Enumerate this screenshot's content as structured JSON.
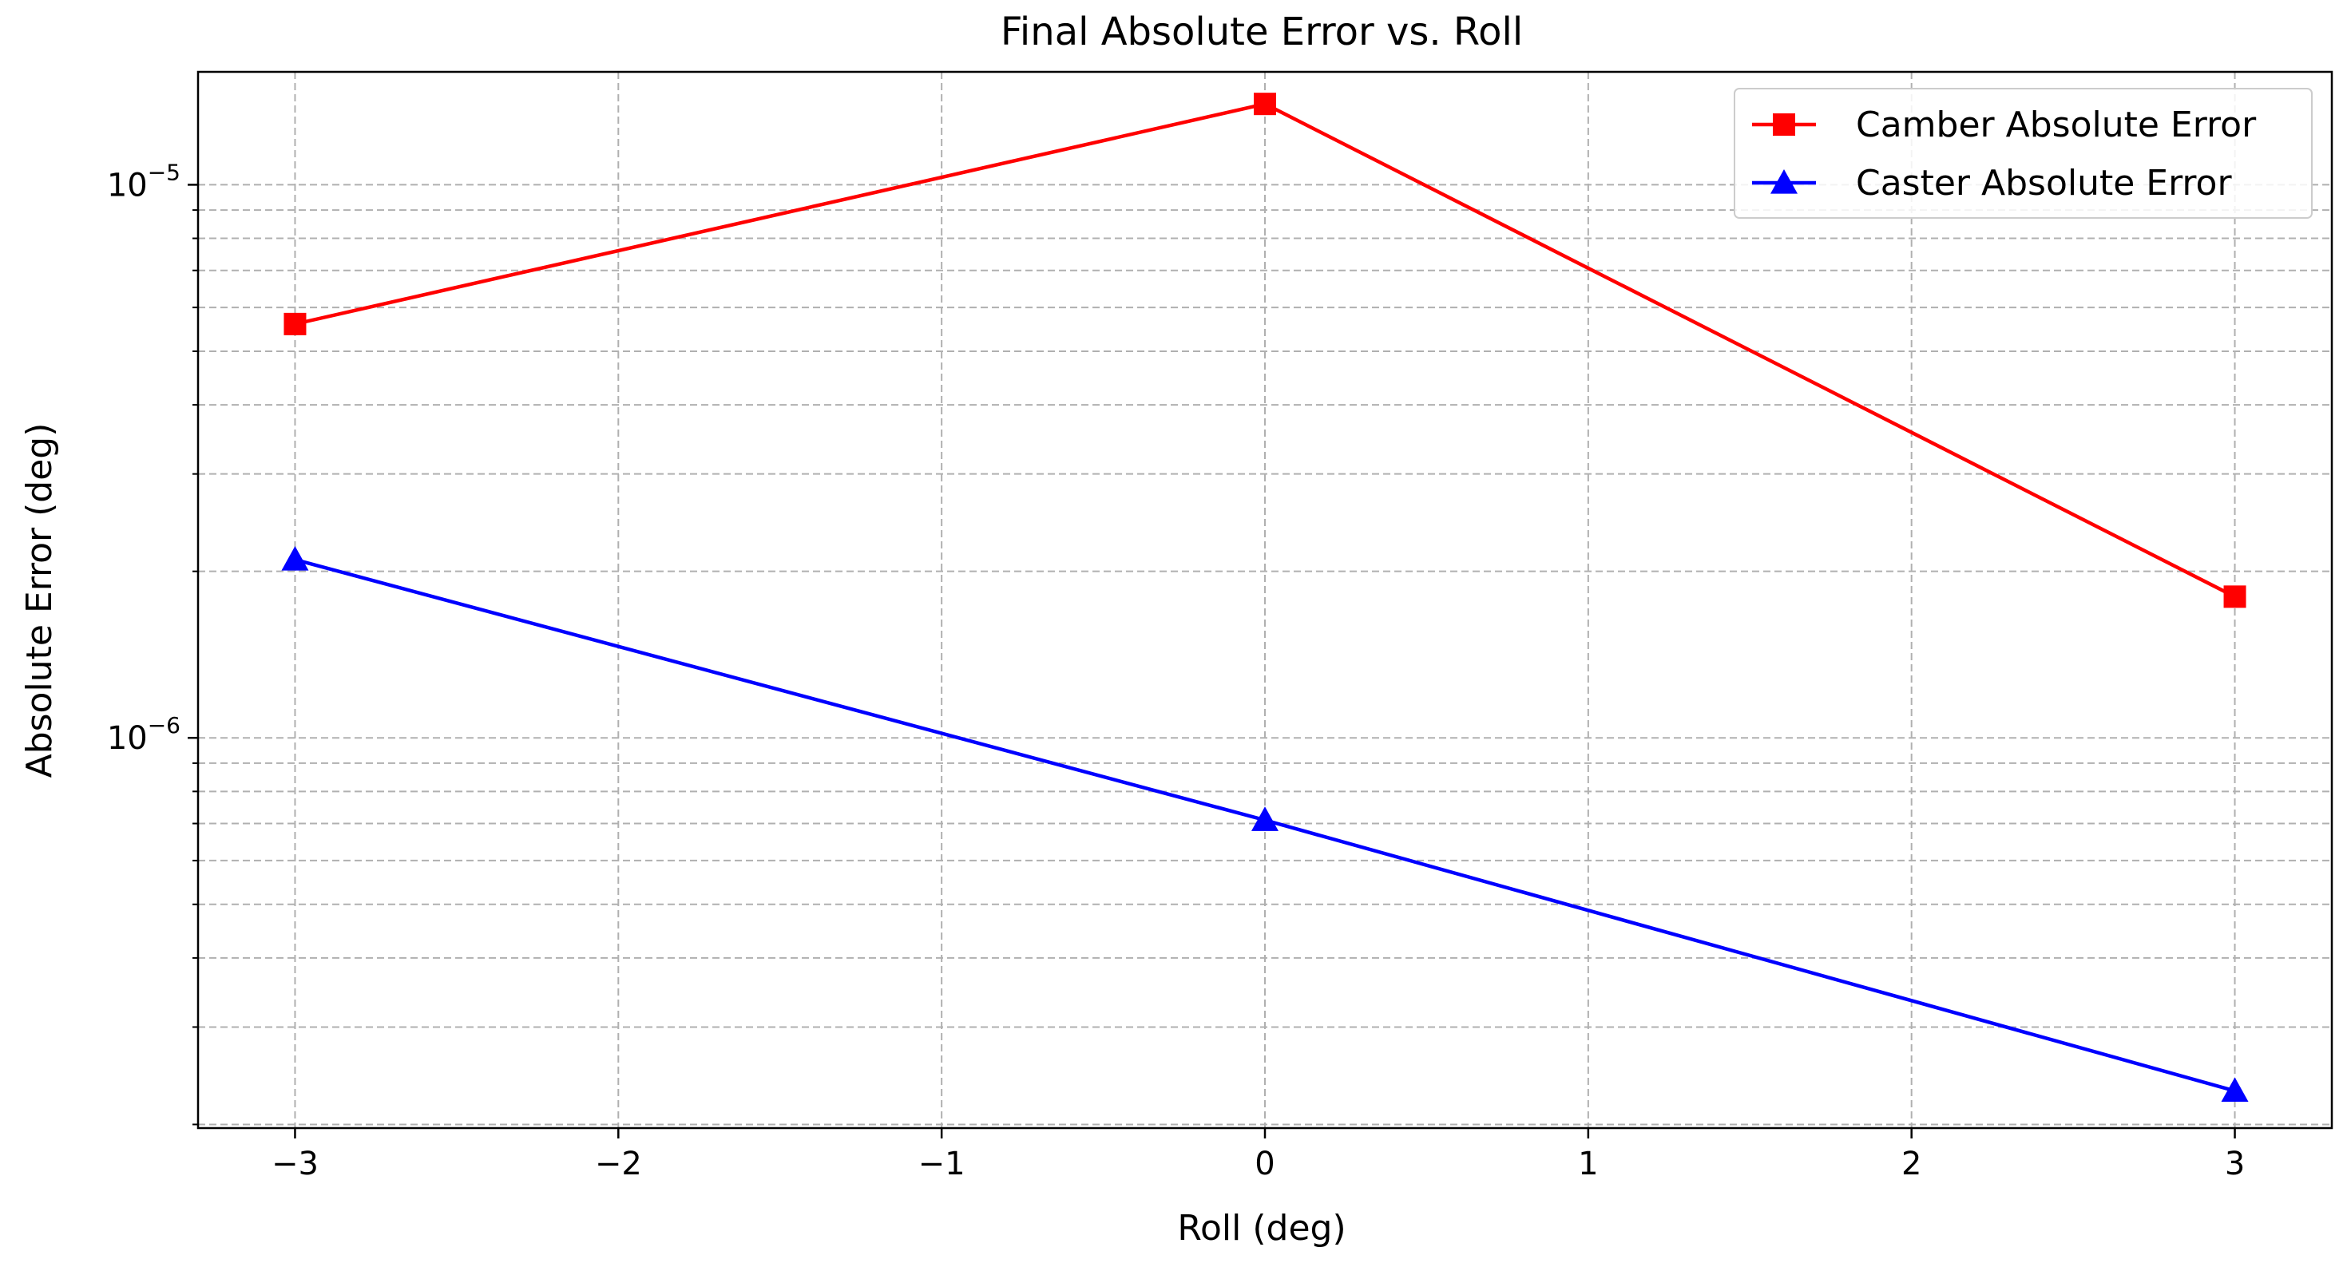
{
  "chart_data": {
    "type": "line",
    "title": "Final Absolute Error vs. Roll",
    "xlabel": "Roll (deg)",
    "ylabel": "Absolute Error (deg)",
    "yscale": "log",
    "xlim": [
      -3.3,
      3.3
    ],
    "ylim": [
      1.97e-07,
      1.6e-05
    ],
    "grid": true,
    "legend_position": "top-right",
    "x_ticks": [
      {
        "value": -3,
        "label": "−3"
      },
      {
        "value": -2,
        "label": "−2"
      },
      {
        "value": -1,
        "label": "−1"
      },
      {
        "value": 0,
        "label": "0"
      },
      {
        "value": 1,
        "label": "1"
      },
      {
        "value": 2,
        "label": "2"
      },
      {
        "value": 3,
        "label": "3"
      }
    ],
    "y_major_ticks": [
      {
        "value": 1e-06,
        "base": "10",
        "exp": "−6"
      },
      {
        "value": 1e-05,
        "base": "10",
        "exp": "−5"
      }
    ],
    "y_minor_ticks": [
      2e-07,
      3e-07,
      4e-07,
      5e-07,
      6e-07,
      7e-07,
      8e-07,
      9e-07,
      2e-06,
      3e-06,
      4e-06,
      5e-06,
      6e-06,
      7e-06,
      8e-06,
      9e-06
    ],
    "x": [
      -3,
      0,
      3
    ],
    "series": [
      {
        "name": "Camber Absolute Error",
        "values": [
          5.6e-06,
          1.4e-05,
          1.8e-06
        ],
        "color": "#ff0000",
        "marker": "square"
      },
      {
        "name": "Caster Absolute Error",
        "values": [
          2.1e-06,
          7.1e-07,
          2.3e-07
        ],
        "color": "#0000ff",
        "marker": "triangle"
      }
    ]
  }
}
